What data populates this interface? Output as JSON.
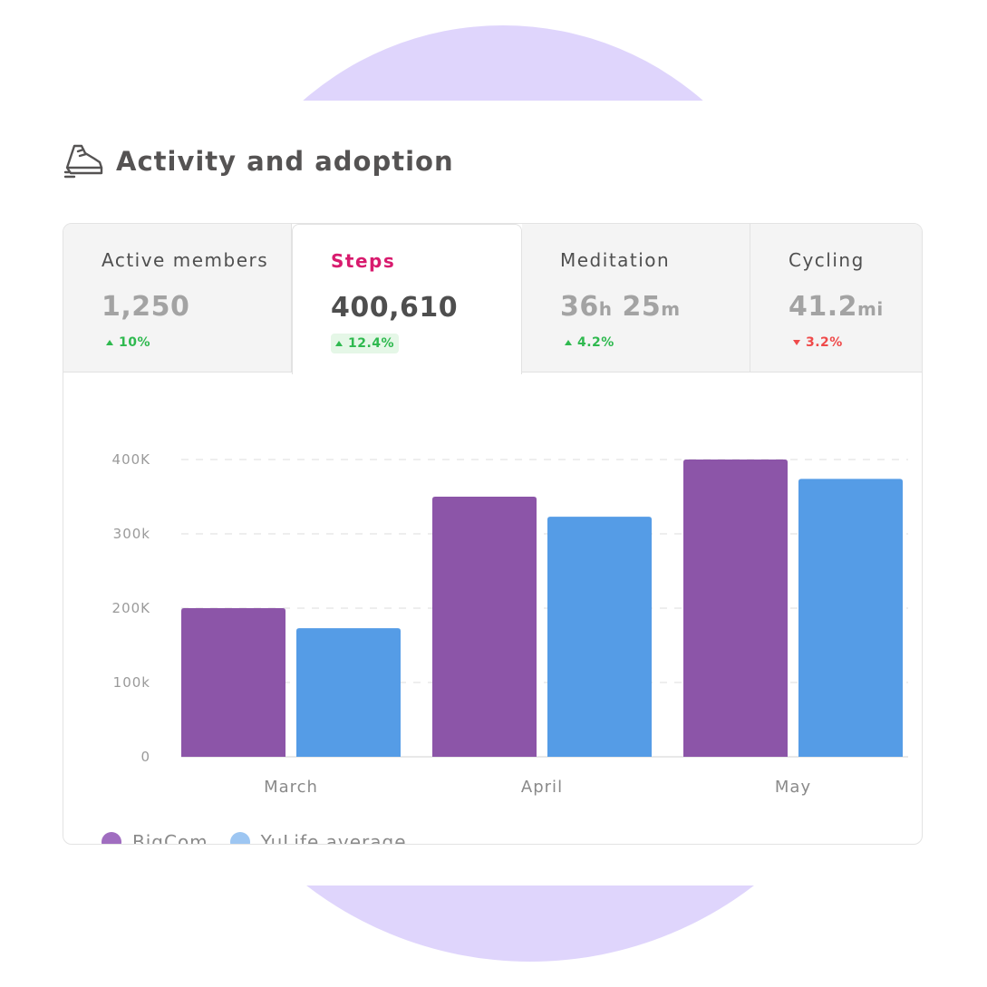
{
  "header": {
    "title": "Activity and adoption",
    "icon": "sneaker-icon"
  },
  "tabs": [
    {
      "label": "Active members",
      "value": "1,250",
      "change": "10%",
      "direction": "up"
    },
    {
      "label": "Steps",
      "value": "400,610",
      "change": "12.4%",
      "direction": "up",
      "active": true
    },
    {
      "label": "Meditation",
      "value_parts": [
        "36",
        "h",
        " 25",
        "m"
      ],
      "change": "4.2%",
      "direction": "up"
    },
    {
      "label": "Cycling",
      "value_parts": [
        "41.2",
        "mi"
      ],
      "change": "3.2%",
      "direction": "down"
    }
  ],
  "colors": {
    "accent": "#d81b6e",
    "up": "#2fb94f",
    "down": "#ef4a4a",
    "series1": "#8c55a8",
    "series2": "#559ce6",
    "blob": "#dfd5fc"
  },
  "chart_data": {
    "type": "bar",
    "categories": [
      "March",
      "April",
      "May"
    ],
    "series": [
      {
        "name": "BigCom",
        "values": [
          200000,
          350000,
          400000
        ],
        "color": "#8c55a8"
      },
      {
        "name": "YuLife average",
        "values": [
          173000,
          323000,
          374000
        ],
        "color": "#559ce6"
      }
    ],
    "y_ticks": [
      "0",
      "100k",
      "200K",
      "300k",
      "400K"
    ],
    "ylim": [
      0,
      400000
    ],
    "grid": "dashed horizontal",
    "legend": "bottom-left"
  }
}
